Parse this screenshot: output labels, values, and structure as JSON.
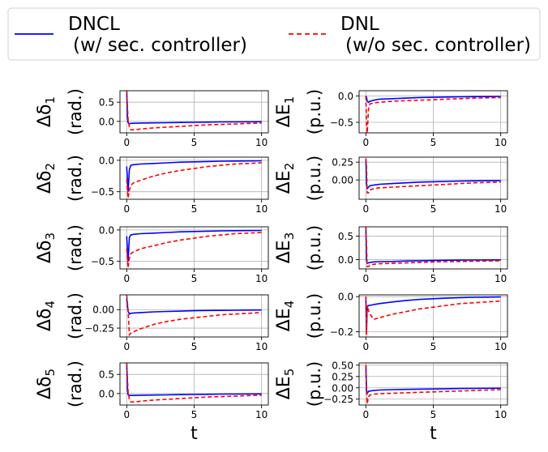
{
  "legend": {
    "placement": "top",
    "entries": [
      {
        "name": "DNCL",
        "subtitle": "(w/ sec. controller)",
        "color": "#0000ff",
        "style": "solid"
      },
      {
        "name": "DNL",
        "subtitle": "(w/o sec. controller)",
        "color": "#ff0000",
        "style": "dashed"
      }
    ]
  },
  "colors": {
    "dncl": "#0000ff",
    "dnl": "#ff0000",
    "grid": "#b0b0b0"
  },
  "chart_data": [
    {
      "type": "line",
      "symbol": "δ",
      "index": "1",
      "unit": "(rad.)",
      "xlabel": "",
      "xlim": [
        -0.5,
        10.5
      ],
      "ylim": [
        -0.3,
        0.8
      ],
      "xticks": [
        "0",
        "5",
        "10"
      ],
      "yticks": [
        {
          "v": 0.5,
          "label": "0.5"
        },
        {
          "v": 0.0,
          "label": "0.0"
        }
      ],
      "grid": true,
      "series": [
        {
          "name": "DNCL",
          "x": [
            0,
            0.05,
            0.1,
            0.2,
            0.4,
            1,
            2,
            3,
            4,
            5,
            6,
            7,
            8,
            9,
            10
          ],
          "values": [
            0.8,
            0.1,
            -0.03,
            -0.06,
            -0.05,
            -0.045,
            -0.04,
            -0.035,
            -0.03,
            -0.025,
            -0.02,
            -0.015,
            -0.012,
            -0.01,
            -0.008
          ]
        },
        {
          "name": "DNL",
          "x": [
            0,
            0.05,
            0.1,
            0.2,
            0.3,
            0.6,
            1,
            2,
            3,
            4,
            5,
            6,
            7,
            8,
            9,
            10
          ],
          "values": [
            0.8,
            0.4,
            0.05,
            -0.15,
            -0.22,
            -0.22,
            -0.2,
            -0.17,
            -0.15,
            -0.13,
            -0.11,
            -0.09,
            -0.08,
            -0.07,
            -0.055,
            -0.045
          ]
        }
      ]
    },
    {
      "type": "line",
      "symbol": "E",
      "index": "1",
      "unit": "(p.u.)",
      "xlabel": "",
      "xlim": [
        -0.5,
        10.5
      ],
      "ylim": [
        -0.7,
        0.1
      ],
      "xticks": [
        "0",
        "5",
        "10"
      ],
      "yticks": [
        {
          "v": 0.0,
          "label": "0.0"
        },
        {
          "v": -0.5,
          "label": "−0.5"
        }
      ],
      "grid": true,
      "series": [
        {
          "name": "DNCL",
          "x": [
            0,
            0.05,
            0.1,
            0.2,
            0.3,
            0.6,
            1,
            2,
            3,
            4,
            5,
            6,
            7,
            8,
            9,
            10
          ],
          "values": [
            0.0,
            -0.02,
            -0.1,
            -0.12,
            -0.1,
            -0.08,
            -0.06,
            -0.05,
            -0.04,
            -0.03,
            -0.025,
            -0.02,
            -0.015,
            -0.012,
            -0.01,
            -0.008
          ]
        },
        {
          "name": "DNL",
          "x": [
            0,
            0.05,
            0.1,
            0.2,
            0.3,
            0.6,
            1,
            2,
            3,
            4,
            5,
            6,
            7,
            8,
            9,
            10
          ],
          "values": [
            0.0,
            -0.5,
            -0.7,
            -0.25,
            -0.15,
            -0.13,
            -0.12,
            -0.1,
            -0.09,
            -0.08,
            -0.07,
            -0.06,
            -0.05,
            -0.04,
            -0.035,
            -0.03
          ]
        }
      ]
    },
    {
      "type": "line",
      "symbol": "δ",
      "index": "2",
      "unit": "(rad.)",
      "xlabel": "",
      "xlim": [
        -0.5,
        10.5
      ],
      "ylim": [
        -0.62,
        0.05
      ],
      "xticks": [
        "0",
        "5",
        "10"
      ],
      "yticks": [
        {
          "v": 0.0,
          "label": "0.0"
        },
        {
          "v": -0.5,
          "label": "−0.5"
        }
      ],
      "grid": true,
      "series": [
        {
          "name": "DNCL",
          "x": [
            0,
            0.1,
            0.2,
            0.3,
            0.5,
            1,
            2,
            3,
            4,
            5,
            6,
            7,
            8,
            9,
            10
          ],
          "values": [
            -0.1,
            -0.5,
            -0.15,
            -0.08,
            -0.07,
            -0.06,
            -0.05,
            -0.04,
            -0.03,
            -0.025,
            -0.02,
            -0.015,
            -0.012,
            -0.01,
            -0.008
          ]
        },
        {
          "name": "DNL",
          "x": [
            0,
            0.1,
            0.2,
            0.3,
            0.5,
            1,
            2,
            3,
            4,
            5,
            6,
            7,
            8,
            9,
            10
          ],
          "values": [
            -0.3,
            -0.6,
            -0.48,
            -0.4,
            -0.36,
            -0.32,
            -0.25,
            -0.2,
            -0.16,
            -0.13,
            -0.1,
            -0.08,
            -0.06,
            -0.05,
            -0.04
          ]
        }
      ]
    },
    {
      "type": "line",
      "symbol": "E",
      "index": "2",
      "unit": "(p.u.)",
      "xlabel": "",
      "xlim": [
        -0.5,
        10.5
      ],
      "ylim": [
        -0.27,
        0.32
      ],
      "xticks": [
        "0",
        "5",
        "10"
      ],
      "yticks": [
        {
          "v": 0.25,
          "label": "0.25"
        },
        {
          "v": 0.0,
          "label": "0.00"
        }
      ],
      "grid": true,
      "series": [
        {
          "name": "DNCL",
          "x": [
            0,
            0.05,
            0.1,
            0.2,
            0.3,
            0.6,
            1,
            2,
            3,
            4,
            5,
            6,
            7,
            8,
            9,
            10
          ],
          "values": [
            0.3,
            -0.05,
            -0.12,
            -0.1,
            -0.08,
            -0.07,
            -0.06,
            -0.05,
            -0.04,
            -0.03,
            -0.025,
            -0.02,
            -0.015,
            -0.012,
            -0.01,
            -0.008
          ]
        },
        {
          "name": "DNL",
          "x": [
            0,
            0.05,
            0.1,
            0.2,
            0.3,
            0.6,
            1,
            2,
            3,
            4,
            5,
            6,
            7,
            8,
            9,
            10
          ],
          "values": [
            0.3,
            0.2,
            -0.18,
            -0.18,
            -0.14,
            -0.12,
            -0.11,
            -0.1,
            -0.09,
            -0.08,
            -0.07,
            -0.06,
            -0.05,
            -0.04,
            -0.035,
            -0.03
          ]
        }
      ]
    },
    {
      "type": "line",
      "symbol": "δ",
      "index": "3",
      "unit": "(rad.)",
      "xlabel": "",
      "xlim": [
        -0.5,
        10.5
      ],
      "ylim": [
        -0.62,
        0.05
      ],
      "xticks": [
        "0",
        "5",
        "10"
      ],
      "yticks": [
        {
          "v": 0.0,
          "label": "0.0"
        },
        {
          "v": -0.5,
          "label": "−0.5"
        }
      ],
      "grid": true,
      "series": [
        {
          "name": "DNCL",
          "x": [
            0,
            0.1,
            0.2,
            0.3,
            0.5,
            1,
            2,
            3,
            4,
            5,
            6,
            7,
            8,
            9,
            10
          ],
          "values": [
            -0.1,
            -0.5,
            -0.12,
            -0.08,
            -0.07,
            -0.06,
            -0.05,
            -0.04,
            -0.03,
            -0.025,
            -0.02,
            -0.015,
            -0.012,
            -0.01,
            -0.008
          ]
        },
        {
          "name": "DNL",
          "x": [
            0,
            0.1,
            0.2,
            0.3,
            0.5,
            1,
            2,
            3,
            4,
            5,
            6,
            7,
            8,
            9,
            10
          ],
          "values": [
            -0.3,
            -0.6,
            -0.45,
            -0.38,
            -0.35,
            -0.3,
            -0.25,
            -0.2,
            -0.16,
            -0.13,
            -0.1,
            -0.08,
            -0.06,
            -0.05,
            -0.04
          ]
        }
      ]
    },
    {
      "type": "line",
      "symbol": "E",
      "index": "3",
      "unit": "(p.u.)",
      "xlabel": "",
      "xlim": [
        -0.5,
        10.5
      ],
      "ylim": [
        -0.2,
        0.7
      ],
      "xticks": [
        "0",
        "5",
        "10"
      ],
      "yticks": [
        {
          "v": 0.5,
          "label": "0.5"
        },
        {
          "v": 0.0,
          "label": "0.0"
        }
      ],
      "grid": true,
      "series": [
        {
          "name": "DNCL",
          "x": [
            0,
            0.05,
            0.1,
            0.2,
            0.3,
            0.6,
            1,
            2,
            3,
            4,
            5,
            6,
            7,
            8,
            9,
            10
          ],
          "values": [
            0.7,
            0.0,
            -0.08,
            -0.07,
            -0.06,
            -0.05,
            -0.045,
            -0.04,
            -0.03,
            -0.025,
            -0.02,
            -0.015,
            -0.012,
            -0.01,
            -0.008,
            -0.006
          ]
        },
        {
          "name": "DNL",
          "x": [
            0,
            0.05,
            0.1,
            0.2,
            0.3,
            0.6,
            1,
            2,
            3,
            4,
            5,
            6,
            7,
            8,
            9,
            10
          ],
          "values": [
            0.7,
            0.3,
            -0.15,
            -0.15,
            -0.12,
            -0.1,
            -0.09,
            -0.08,
            -0.07,
            -0.06,
            -0.05,
            -0.045,
            -0.04,
            -0.035,
            -0.03,
            -0.025
          ]
        }
      ]
    },
    {
      "type": "line",
      "symbol": "δ",
      "index": "4",
      "unit": "(rad.)",
      "xlabel": "",
      "xlim": [
        -0.5,
        10.5
      ],
      "ylim": [
        -0.37,
        0.2
      ],
      "xticks": [
        "0",
        "5",
        "10"
      ],
      "yticks": [
        {
          "v": 0.0,
          "label": "0.00"
        },
        {
          "v": -0.25,
          "label": "−0.25"
        }
      ],
      "grid": true,
      "series": [
        {
          "name": "DNCL",
          "x": [
            0,
            0.1,
            0.2,
            0.3,
            0.5,
            1,
            2,
            3,
            4,
            5,
            6,
            7,
            8,
            9,
            10
          ],
          "values": [
            0.15,
            -0.02,
            -0.06,
            -0.05,
            -0.045,
            -0.04,
            -0.03,
            -0.025,
            -0.02,
            -0.015,
            -0.012,
            -0.01,
            -0.008,
            -0.006,
            -0.005
          ]
        },
        {
          "name": "DNL",
          "x": [
            0,
            0.1,
            0.2,
            0.3,
            0.5,
            1,
            2,
            3,
            4,
            5,
            6,
            7,
            8,
            9,
            10
          ],
          "values": [
            0.2,
            0.0,
            -0.34,
            -0.32,
            -0.3,
            -0.26,
            -0.2,
            -0.16,
            -0.13,
            -0.11,
            -0.09,
            -0.07,
            -0.06,
            -0.05,
            -0.04
          ]
        }
      ]
    },
    {
      "type": "line",
      "symbol": "E",
      "index": "4",
      "unit": "(p.u.)",
      "xlabel": "",
      "xlim": [
        -0.5,
        10.5
      ],
      "ylim": [
        -0.23,
        0.01
      ],
      "xticks": [
        "0",
        "5",
        "10"
      ],
      "yticks": [
        {
          "v": 0.0,
          "label": "0.0"
        },
        {
          "v": -0.2,
          "label": "−0.2"
        }
      ],
      "grid": true,
      "series": [
        {
          "name": "DNCL",
          "x": [
            0,
            0.05,
            0.1,
            0.2,
            0.3,
            0.6,
            1,
            2,
            3,
            4,
            5,
            6,
            7,
            8,
            9,
            10
          ],
          "values": [
            0.0,
            -0.2,
            -0.06,
            -0.05,
            -0.05,
            -0.045,
            -0.04,
            -0.03,
            -0.022,
            -0.016,
            -0.012,
            -0.009,
            -0.006,
            -0.004,
            -0.003,
            -0.002
          ]
        },
        {
          "name": "DNL",
          "x": [
            0,
            0.05,
            0.1,
            0.2,
            0.3,
            0.6,
            1,
            2,
            3,
            4,
            5,
            6,
            7,
            8,
            9,
            10
          ],
          "values": [
            0.0,
            -0.22,
            -0.05,
            -0.08,
            -0.1,
            -0.13,
            -0.12,
            -0.1,
            -0.085,
            -0.07,
            -0.06,
            -0.05,
            -0.04,
            -0.035,
            -0.03,
            -0.025
          ]
        }
      ]
    },
    {
      "type": "line",
      "symbol": "δ",
      "index": "5",
      "unit": "(rad.)",
      "xlabel": "t",
      "xlim": [
        -0.5,
        10.5
      ],
      "ylim": [
        -0.3,
        0.8
      ],
      "xticks": [
        "0",
        "5",
        "10"
      ],
      "yticks": [
        {
          "v": 0.5,
          "label": "0.5"
        },
        {
          "v": 0.0,
          "label": "0.0"
        }
      ],
      "grid": true,
      "series": [
        {
          "name": "DNCL",
          "x": [
            0,
            0.05,
            0.1,
            0.2,
            0.4,
            1,
            2,
            3,
            4,
            5,
            6,
            7,
            8,
            9,
            10
          ],
          "values": [
            0.8,
            0.1,
            -0.03,
            -0.05,
            -0.05,
            -0.045,
            -0.04,
            -0.035,
            -0.03,
            -0.025,
            -0.02,
            -0.015,
            -0.012,
            -0.01,
            -0.008
          ]
        },
        {
          "name": "DNL",
          "x": [
            0,
            0.05,
            0.1,
            0.2,
            0.3,
            0.6,
            1,
            2,
            3,
            4,
            5,
            6,
            7,
            8,
            9,
            10
          ],
          "values": [
            0.8,
            0.4,
            0.05,
            -0.15,
            -0.22,
            -0.22,
            -0.2,
            -0.17,
            -0.15,
            -0.13,
            -0.11,
            -0.09,
            -0.08,
            -0.07,
            -0.055,
            -0.045
          ]
        }
      ]
    },
    {
      "type": "line",
      "symbol": "E",
      "index": "5",
      "unit": "(p.u.)",
      "xlabel": "t",
      "xlim": [
        -0.5,
        10.5
      ],
      "ylim": [
        -0.38,
        0.55
      ],
      "xticks": [
        "0",
        "5",
        "10"
      ],
      "yticks": [
        {
          "v": 0.5,
          "label": "0.50"
        },
        {
          "v": 0.25,
          "label": "0.25"
        },
        {
          "v": 0.0,
          "label": "0.00"
        },
        {
          "v": -0.25,
          "label": "−0.25"
        }
      ],
      "grid": true,
      "series": [
        {
          "name": "DNCL",
          "x": [
            0,
            0.05,
            0.1,
            0.2,
            0.3,
            0.6,
            1,
            2,
            3,
            4,
            5,
            6,
            7,
            8,
            9,
            10
          ],
          "values": [
            0.5,
            -0.05,
            -0.12,
            -0.08,
            -0.07,
            -0.06,
            -0.05,
            -0.04,
            -0.035,
            -0.03,
            -0.025,
            -0.02,
            -0.015,
            -0.012,
            -0.01,
            -0.008
          ]
        },
        {
          "name": "DNL",
          "x": [
            0,
            0.05,
            0.1,
            0.2,
            0.3,
            0.6,
            1,
            2,
            3,
            4,
            5,
            6,
            7,
            8,
            9,
            10
          ],
          "values": [
            0.5,
            0.0,
            -0.35,
            -0.2,
            -0.16,
            -0.14,
            -0.13,
            -0.12,
            -0.11,
            -0.1,
            -0.09,
            -0.08,
            -0.07,
            -0.06,
            -0.05,
            -0.04
          ]
        }
      ]
    }
  ]
}
